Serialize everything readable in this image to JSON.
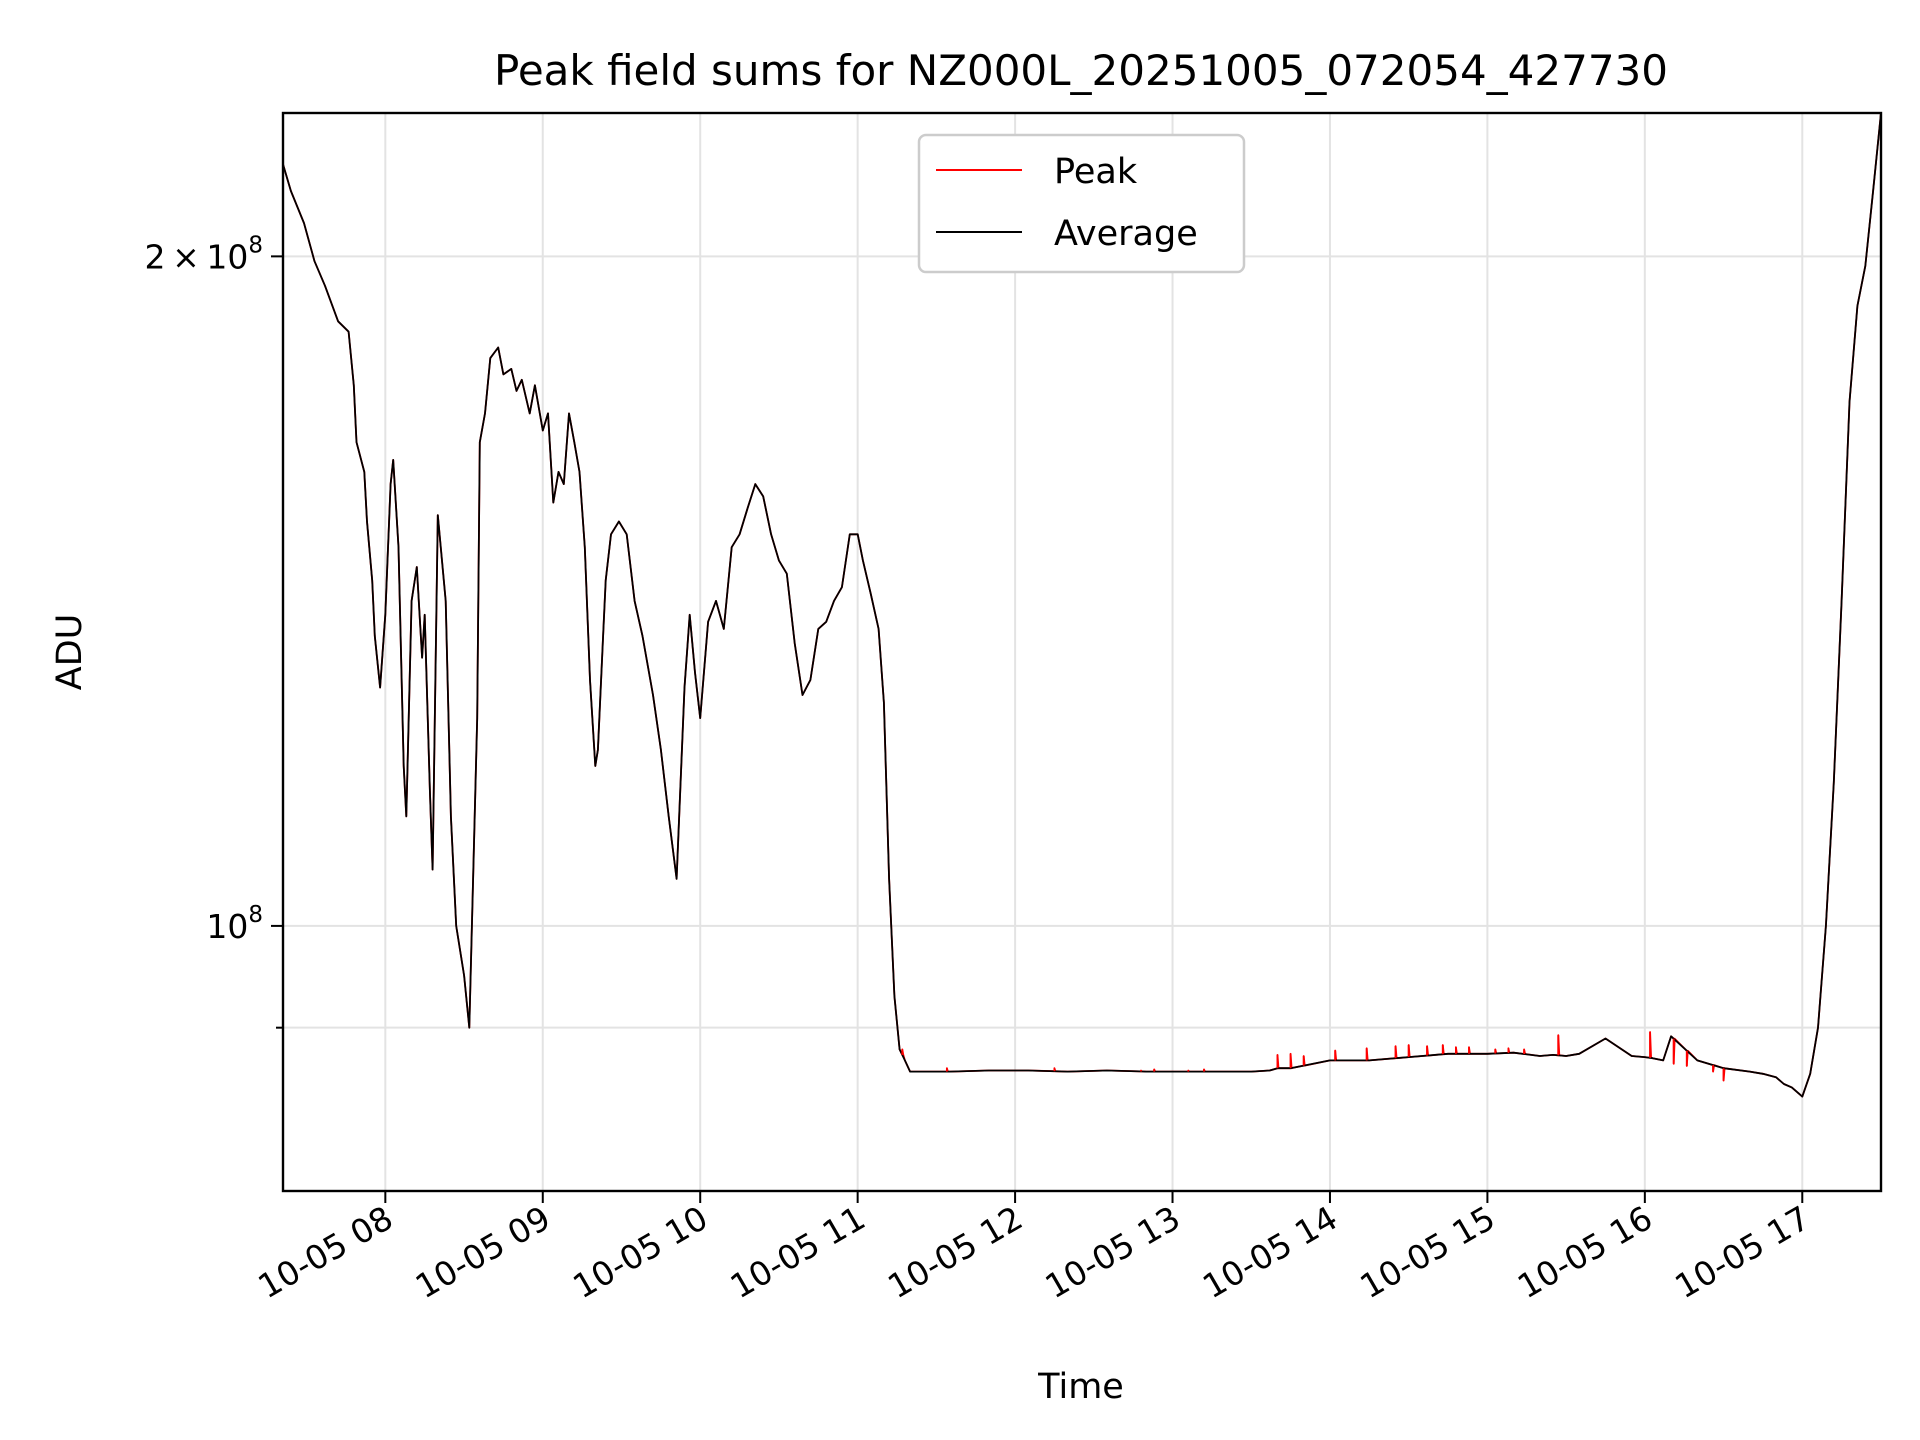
{
  "chart_data": {
    "type": "line",
    "title": "Peak field sums for NZ000L_20251005_072054_427730",
    "xlabel": "Time",
    "ylabel": "ADU",
    "yscale": "log",
    "grid": true,
    "legend_position": "top-center",
    "xlim": [
      "2025-10-05 07:21",
      "2025-10-05 17:30"
    ],
    "ylim": [
      76000000,
      232000000
    ],
    "x_ticks": [
      {
        "t": "2025-10-05 08:00",
        "label": "10-05 08"
      },
      {
        "t": "2025-10-05 09:00",
        "label": "10-05 09"
      },
      {
        "t": "2025-10-05 10:00",
        "label": "10-05 10"
      },
      {
        "t": "2025-10-05 11:00",
        "label": "10-05 11"
      },
      {
        "t": "2025-10-05 12:00",
        "label": "10-05 12"
      },
      {
        "t": "2025-10-05 13:00",
        "label": "10-05 13"
      },
      {
        "t": "2025-10-05 14:00",
        "label": "10-05 14"
      },
      {
        "t": "2025-10-05 15:00",
        "label": "10-05 15"
      },
      {
        "t": "2025-10-05 16:00",
        "label": "10-05 16"
      },
      {
        "t": "2025-10-05 17:00",
        "label": "10-05 17"
      }
    ],
    "y_major_ticks": [
      {
        "value": 100000000,
        "base": "10",
        "exp": "8",
        "mantissa": ""
      },
      {
        "value": 200000000,
        "base": "10",
        "exp": "8",
        "mantissa": "2"
      }
    ],
    "y_minor_gridlines": [
      90000000
    ],
    "colors": {
      "Peak": "#ff0000",
      "Average": "#000000"
    },
    "series": [
      {
        "name": "Peak",
        "x": [
          "2025-10-05 11:17",
          "2025-10-05 11:34",
          "2025-10-05 11:52",
          "2025-10-05 12:15",
          "2025-10-05 12:48",
          "2025-10-05 12:53",
          "2025-10-05 13:06",
          "2025-10-05 13:12",
          "2025-10-05 13:40",
          "2025-10-05 13:45",
          "2025-10-05 13:50",
          "2025-10-05 14:02",
          "2025-10-05 14:14",
          "2025-10-05 14:25",
          "2025-10-05 14:30",
          "2025-10-05 14:37",
          "2025-10-05 14:43",
          "2025-10-05 14:48",
          "2025-10-05 14:53",
          "2025-10-05 15:03",
          "2025-10-05 15:08",
          "2025-10-05 15:14",
          "2025-10-05 15:27",
          "2025-10-05 15:55",
          "2025-10-05 16:02",
          "2025-10-05 16:11",
          "2025-10-05 16:16",
          "2025-10-05 16:26",
          "2025-10-05 16:30"
        ],
        "y": [
          88000000,
          86300000,
          86100000,
          86300000,
          86100000,
          86200000,
          86100000,
          86200000,
          87500000,
          87600000,
          87400000,
          87900000,
          88100000,
          88300000,
          88400000,
          88300000,
          88400000,
          88200000,
          88200000,
          88000000,
          88100000,
          88000000,
          89300000,
          87400000,
          89600000,
          86700000,
          86500000,
          86000000,
          85200000
        ]
      },
      {
        "name": "Average",
        "x": [
          "2025-10-05 07:21",
          "2025-10-05 07:24",
          "2025-10-05 07:29",
          "2025-10-05 07:33",
          "2025-10-05 07:37",
          "2025-10-05 07:42",
          "2025-10-05 07:46",
          "2025-10-05 07:48",
          "2025-10-05 07:49",
          "2025-10-05 07:52",
          "2025-10-05 07:53",
          "2025-10-05 07:55",
          "2025-10-05 07:56",
          "2025-10-05 07:58",
          "2025-10-05 08:00",
          "2025-10-05 08:02",
          "2025-10-05 08:03",
          "2025-10-05 08:05",
          "2025-10-05 08:07",
          "2025-10-05 08:08",
          "2025-10-05 08:10",
          "2025-10-05 08:12",
          "2025-10-05 08:14",
          "2025-10-05 08:15",
          "2025-10-05 08:17",
          "2025-10-05 08:18",
          "2025-10-05 08:20",
          "2025-10-05 08:23",
          "2025-10-05 08:25",
          "2025-10-05 08:27",
          "2025-10-05 08:30",
          "2025-10-05 08:32",
          "2025-10-05 08:35",
          "2025-10-05 08:36",
          "2025-10-05 08:38",
          "2025-10-05 08:40",
          "2025-10-05 08:43",
          "2025-10-05 08:45",
          "2025-10-05 08:48",
          "2025-10-05 08:50",
          "2025-10-05 08:52",
          "2025-10-05 08:55",
          "2025-10-05 08:57",
          "2025-10-05 09:00",
          "2025-10-05 09:02",
          "2025-10-05 09:04",
          "2025-10-05 09:06",
          "2025-10-05 09:08",
          "2025-10-05 09:10",
          "2025-10-05 09:12",
          "2025-10-05 09:14",
          "2025-10-05 09:16",
          "2025-10-05 09:18",
          "2025-10-05 09:20",
          "2025-10-05 09:21",
          "2025-10-05 09:23",
          "2025-10-05 09:24",
          "2025-10-05 09:26",
          "2025-10-05 09:29",
          "2025-10-05 09:32",
          "2025-10-05 09:35",
          "2025-10-05 09:38",
          "2025-10-05 09:42",
          "2025-10-05 09:45",
          "2025-10-05 09:48",
          "2025-10-05 09:51",
          "2025-10-05 09:54",
          "2025-10-05 09:56",
          "2025-10-05 09:58",
          "2025-10-05 10:00",
          "2025-10-05 10:03",
          "2025-10-05 10:06",
          "2025-10-05 10:09",
          "2025-10-05 10:12",
          "2025-10-05 10:15",
          "2025-10-05 10:18",
          "2025-10-05 10:21",
          "2025-10-05 10:24",
          "2025-10-05 10:27",
          "2025-10-05 10:30",
          "2025-10-05 10:33",
          "2025-10-05 10:36",
          "2025-10-05 10:39",
          "2025-10-05 10:42",
          "2025-10-05 10:45",
          "2025-10-05 10:48",
          "2025-10-05 10:51",
          "2025-10-05 10:54",
          "2025-10-05 10:57",
          "2025-10-05 11:00",
          "2025-10-05 11:02",
          "2025-10-05 11:05",
          "2025-10-05 11:08",
          "2025-10-05 11:10",
          "2025-10-05 11:12",
          "2025-10-05 11:14",
          "2025-10-05 11:16",
          "2025-10-05 11:18",
          "2025-10-05 11:20",
          "2025-10-05 11:25",
          "2025-10-05 11:35",
          "2025-10-05 11:50",
          "2025-10-05 12:05",
          "2025-10-05 12:20",
          "2025-10-05 12:35",
          "2025-10-05 12:50",
          "2025-10-05 13:05",
          "2025-10-05 13:20",
          "2025-10-05 13:30",
          "2025-10-05 13:37",
          "2025-10-05 13:40",
          "2025-10-05 13:45",
          "2025-10-05 14:00",
          "2025-10-05 14:15",
          "2025-10-05 14:30",
          "2025-10-05 14:45",
          "2025-10-05 15:00",
          "2025-10-05 15:10",
          "2025-10-05 15:20",
          "2025-10-05 15:25",
          "2025-10-05 15:30",
          "2025-10-05 15:35",
          "2025-10-05 15:45",
          "2025-10-05 15:55",
          "2025-10-05 16:00",
          "2025-10-05 16:03",
          "2025-10-05 16:07",
          "2025-10-05 16:10",
          "2025-10-05 16:20",
          "2025-10-05 16:30",
          "2025-10-05 16:40",
          "2025-10-05 16:45",
          "2025-10-05 16:50",
          "2025-10-05 16:53",
          "2025-10-05 16:56",
          "2025-10-05 17:00",
          "2025-10-05 17:03",
          "2025-10-05 17:06",
          "2025-10-05 17:09",
          "2025-10-05 17:12",
          "2025-10-05 17:15",
          "2025-10-05 17:18",
          "2025-10-05 17:21",
          "2025-10-05 17:24",
          "2025-10-05 17:27",
          "2025-10-05 17:30"
        ],
        "y": [
          220000000,
          214000000,
          207000000,
          199000000,
          194000000,
          187000000,
          185000000,
          175000000,
          165000000,
          160000000,
          152000000,
          143000000,
          135000000,
          128000000,
          138000000,
          158000000,
          162000000,
          148000000,
          118000000,
          112000000,
          140000000,
          145000000,
          132000000,
          138000000,
          115000000,
          106000000,
          153000000,
          140000000,
          112000000,
          100000000,
          95000000,
          90000000,
          124000000,
          165000000,
          170000000,
          180000000,
          182000000,
          177000000,
          178000000,
          174000000,
          176000000,
          170000000,
          175000000,
          167000000,
          170000000,
          155000000,
          160000000,
          158000000,
          170000000,
          165000000,
          160000000,
          148000000,
          129000000,
          118000000,
          120000000,
          135000000,
          143000000,
          150000000,
          152000000,
          150000000,
          140000000,
          135000000,
          127000000,
          120000000,
          112000000,
          105000000,
          128000000,
          138000000,
          130000000,
          124000000,
          137000000,
          140000000,
          136000000,
          148000000,
          150000000,
          154000000,
          158000000,
          156000000,
          150000000,
          146000000,
          144000000,
          134000000,
          127000000,
          129000000,
          136000000,
          137000000,
          140000000,
          142000000,
          150000000,
          150000000,
          146000000,
          141000000,
          136000000,
          126000000,
          105000000,
          93000000,
          88000000,
          87000000,
          86000000,
          86000000,
          86000000,
          86100000,
          86100000,
          86000000,
          86100000,
          86000000,
          86000000,
          86000000,
          86000000,
          86100000,
          86300000,
          86300000,
          87000000,
          87000000,
          87300000,
          87600000,
          87600000,
          87700000,
          87400000,
          87500000,
          87400000,
          87600000,
          89000000,
          87400000,
          87300000,
          87200000,
          87000000,
          89200000,
          87000000,
          86300000,
          86000000,
          85800000,
          85500000,
          84900000,
          84600000,
          83800000,
          85800000,
          90000000,
          100000000,
          116000000,
          140000000,
          172000000,
          190000000,
          198000000,
          214000000,
          232000000
        ]
      }
    ]
  }
}
